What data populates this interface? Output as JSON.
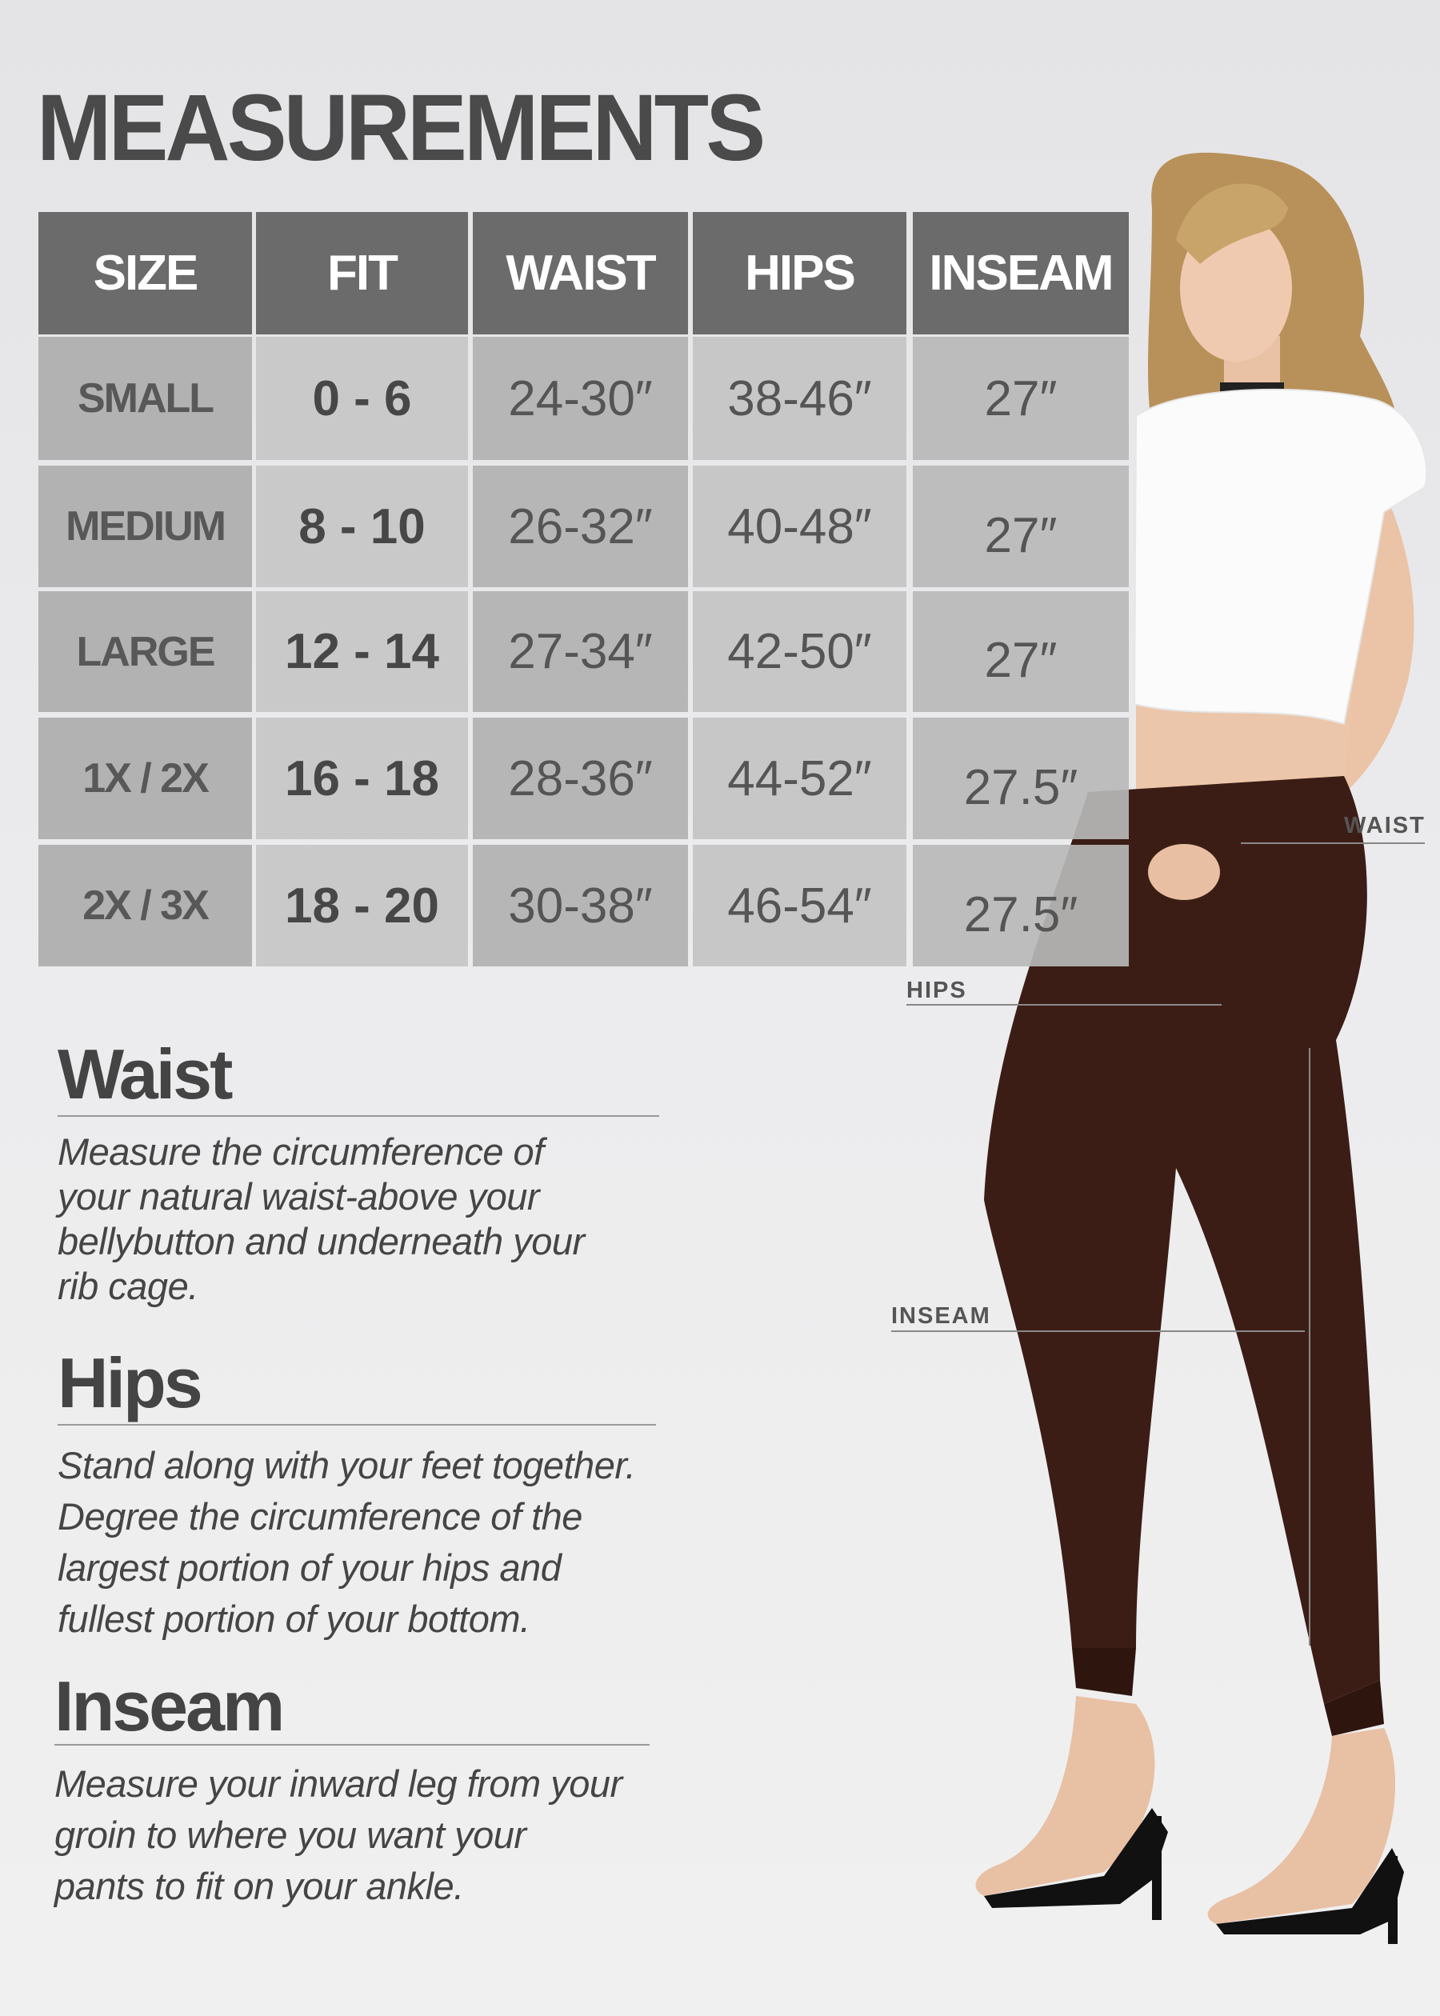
{
  "title": "MEASUREMENTS",
  "table": {
    "headers": [
      "SIZE",
      "FIT",
      "WAIST",
      "HIPS",
      "INSEAM"
    ],
    "rows": [
      [
        "SMALL",
        "0 - 6",
        "24-30″",
        "38-46″",
        "27″"
      ],
      [
        "MEDIUM",
        "8 - 10",
        "26-32″",
        "40-48″",
        "27″"
      ],
      [
        "LARGE",
        "12 - 14",
        "27-34″",
        "42-50″",
        "27″"
      ],
      [
        "1X / 2X",
        "16 - 18",
        "28-36″",
        "44-52″",
        "27.5″"
      ],
      [
        "2X / 3X",
        "18 - 20",
        "30-38″",
        "46-54″",
        "27.5″"
      ]
    ]
  },
  "sections": [
    {
      "heading": "Waist",
      "lines": [
        "Measure the circumference of",
        "your natural waist-above your",
        "bellybutton and underneath your",
        "rib cage."
      ]
    },
    {
      "heading": "Hips",
      "lines": [
        "Stand along with your feet together.",
        "Degree the circumference of the",
        "largest portion of your hips and",
        "fullest portion of your bottom."
      ]
    },
    {
      "heading": "Inseam",
      "lines": [
        "Measure your inward leg from your",
        "groin to where you want your",
        "pants to fit on your ankle."
      ]
    }
  ],
  "figure_labels": {
    "waist": "WAIST",
    "hips": "HIPS",
    "inseam": "INSEAM"
  },
  "colors": {
    "header": "#6b6b6b",
    "pants": "#3b1d15",
    "text": "#444444"
  }
}
